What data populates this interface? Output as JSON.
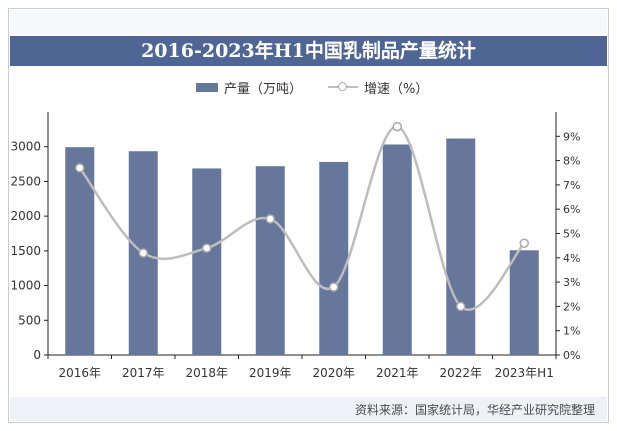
{
  "title": "2016-2023年H1中国乳制品产量统计",
  "legend": {
    "bar_label": "产量（万吨）",
    "line_label": "增速（%）"
  },
  "source": "资料来源：国家统计局，华经产业研究院整理",
  "colors": {
    "title_bg": "#4f6594",
    "bar": "#66779b",
    "line": "#bdbdbd",
    "marker_edge": "#a8a8a8"
  },
  "chart_data": {
    "type": "bar",
    "categories": [
      "2016年",
      "2017年",
      "2018年",
      "2019年",
      "2020年",
      "2021年",
      "2022年",
      "2023年H1"
    ],
    "series": [
      {
        "name": "产量（万吨）",
        "type": "bar",
        "axis": "left",
        "values": [
          2993,
          2935,
          2687,
          2719,
          2781,
          3032,
          3118,
          1508
        ]
      },
      {
        "name": "增速（%）",
        "type": "line",
        "axis": "right",
        "smooth": true,
        "values": [
          7.7,
          4.2,
          4.4,
          5.6,
          2.8,
          9.4,
          2.0,
          4.6
        ]
      }
    ],
    "y_left": {
      "lim": [
        0,
        3500
      ],
      "ticks": [
        "0",
        "500",
        "1000",
        "1500",
        "2000",
        "2500",
        "3000"
      ]
    },
    "y_right": {
      "lim": [
        0,
        10
      ],
      "ticks": [
        "0%",
        "1%",
        "2%",
        "3%",
        "4%",
        "5%",
        "6%",
        "7%",
        "8%",
        "9%"
      ]
    },
    "legend_position": "top-center",
    "grid": false
  }
}
